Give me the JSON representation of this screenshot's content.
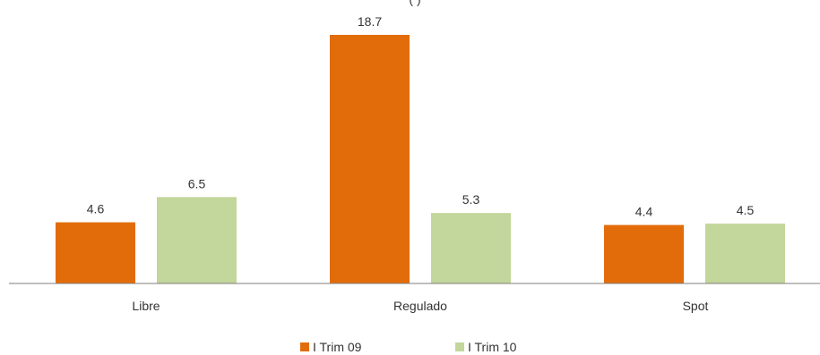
{
  "chart_data": {
    "type": "bar",
    "title": "(                    )",
    "categories": [
      "Libre",
      "Regulado",
      "Spot"
    ],
    "series": [
      {
        "name": "I Trim 09",
        "values": [
          4.6,
          18.7,
          4.4
        ],
        "color": "#E36C0A"
      },
      {
        "name": "I Trim 10",
        "values": [
          6.5,
          5.3,
          4.5
        ],
        "color": "#C3D69B"
      }
    ],
    "ylim": [
      0,
      20
    ],
    "grid": false,
    "legend_position": "bottom"
  }
}
